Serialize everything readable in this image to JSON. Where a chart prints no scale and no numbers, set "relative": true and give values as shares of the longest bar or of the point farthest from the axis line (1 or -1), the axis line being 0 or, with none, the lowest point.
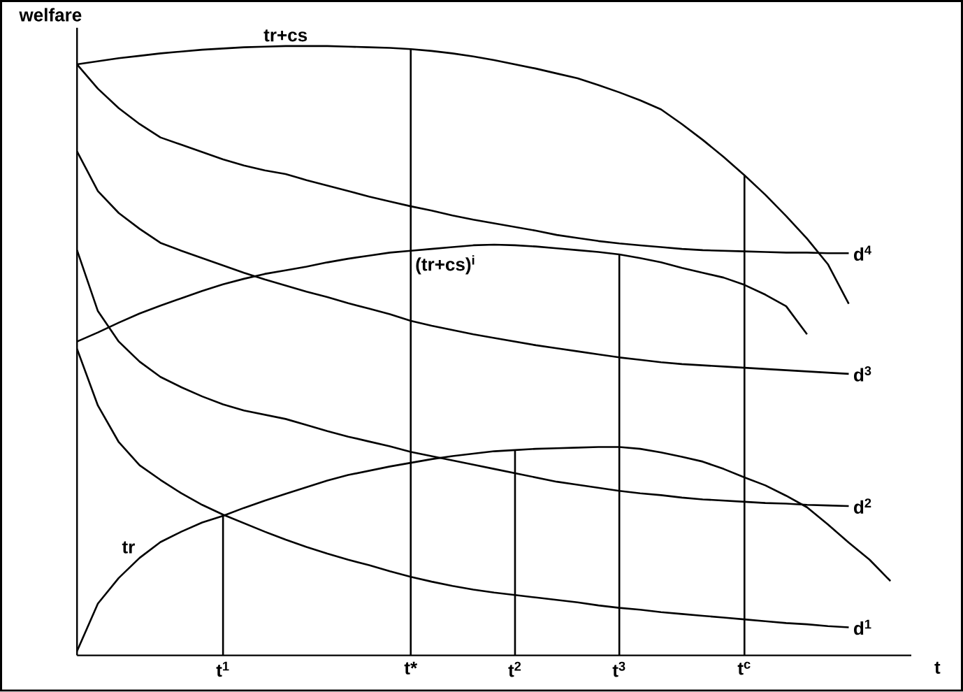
{
  "chart_data": {
    "type": "line",
    "relative": true,
    "xlabel": "t",
    "ylabel": "welfare",
    "marker": "none",
    "line_style": "solid",
    "categories": [
      null,
      null,
      null,
      null,
      null,
      null,
      null,
      "t$^{1}$",
      null,
      null,
      null,
      null,
      null,
      null,
      null,
      null,
      "t*",
      null,
      null,
      null,
      null,
      "t$^{2}$",
      null,
      null,
      null,
      null,
      "t$^{3}$",
      null,
      null,
      null,
      null,
      null,
      "t$^{c}$",
      null,
      null,
      null,
      null,
      null,
      null,
      null,
      null
    ],
    "series": [
      {
        "name": "tr+cs",
        "color": "#000000",
        "values": [
          0.97,
          0.975,
          0.98,
          0.984,
          0.988,
          0.991,
          0.994,
          0.996,
          0.998,
          0.999,
          1.0,
          1.0,
          1.0,
          0.999,
          0.998,
          0.997,
          0.995,
          0.992,
          0.988,
          0.983,
          0.977,
          0.97,
          0.963,
          0.955,
          0.947,
          0.936,
          0.924,
          0.911,
          0.896,
          0.872,
          0.846,
          0.818,
          0.788,
          0.756,
          0.721,
          0.684,
          0.642,
          0.577,
          null,
          null,
          null
        ]
      },
      {
        "name": "d$^{4}$",
        "color": "#000000",
        "values": [
          0.97,
          0.93,
          0.898,
          0.872,
          0.85,
          0.838,
          0.826,
          0.814,
          0.804,
          0.796,
          0.79,
          0.78,
          0.771,
          0.762,
          0.753,
          0.745,
          0.737,
          0.73,
          0.722,
          0.715,
          0.709,
          0.703,
          0.697,
          0.69,
          0.685,
          0.68,
          0.676,
          0.673,
          0.67,
          0.667,
          0.665,
          0.664,
          0.663,
          0.662,
          0.661,
          0.661,
          0.66,
          0.66,
          null,
          null,
          null
        ]
      },
      {
        "name": "(tr+cs)$^{i}$",
        "color": "#000000",
        "values": [
          0.515,
          0.53,
          0.546,
          0.561,
          0.574,
          0.586,
          0.598,
          0.609,
          0.618,
          0.626,
          0.632,
          0.638,
          0.645,
          0.651,
          0.656,
          0.661,
          0.664,
          0.667,
          0.67,
          0.673,
          0.674,
          0.673,
          0.671,
          0.668,
          0.665,
          0.662,
          0.658,
          0.652,
          0.645,
          0.636,
          0.628,
          0.62,
          0.608,
          0.592,
          0.573,
          0.527,
          null,
          null,
          null,
          null,
          null
        ]
      },
      {
        "name": "d$^{3}$",
        "color": "#000000",
        "values": [
          0.827,
          0.762,
          0.726,
          0.7,
          0.677,
          0.664,
          0.652,
          0.64,
          0.628,
          0.617,
          0.607,
          0.597,
          0.588,
          0.578,
          0.569,
          0.56,
          0.549,
          0.541,
          0.534,
          0.527,
          0.521,
          0.515,
          0.509,
          0.504,
          0.499,
          0.494,
          0.489,
          0.485,
          0.481,
          0.478,
          0.476,
          0.474,
          0.472,
          0.47,
          0.468,
          0.466,
          0.464,
          0.462,
          null,
          null,
          null
        ]
      },
      {
        "name": "d$^{2}$",
        "color": "#000000",
        "values": [
          0.665,
          0.565,
          0.515,
          0.482,
          0.457,
          0.44,
          0.425,
          0.412,
          0.402,
          0.395,
          0.388,
          0.378,
          0.368,
          0.359,
          0.351,
          0.343,
          0.334,
          0.327,
          0.32,
          0.313,
          0.306,
          0.299,
          0.292,
          0.285,
          0.28,
          0.275,
          0.27,
          0.266,
          0.263,
          0.259,
          0.256,
          0.254,
          0.252,
          0.25,
          0.249,
          0.247,
          0.246,
          0.245,
          null,
          null,
          null
        ]
      },
      {
        "name": "tr",
        "color": "#000000",
        "values": [
          0.007,
          0.085,
          0.127,
          0.16,
          0.186,
          0.203,
          0.218,
          0.229,
          0.242,
          0.254,
          0.265,
          0.276,
          0.287,
          0.296,
          0.303,
          0.31,
          0.316,
          0.322,
          0.327,
          0.331,
          0.335,
          0.337,
          0.339,
          0.34,
          0.341,
          0.342,
          0.342,
          0.339,
          0.333,
          0.326,
          0.318,
          0.306,
          0.292,
          0.279,
          0.262,
          0.243,
          0.215,
          0.185,
          0.157,
          0.122,
          null
        ]
      },
      {
        "name": "d$^{1}$",
        "color": "#000000",
        "values": [
          0.503,
          0.41,
          0.35,
          0.312,
          0.288,
          0.266,
          0.247,
          0.231,
          0.217,
          0.203,
          0.19,
          0.178,
          0.167,
          0.157,
          0.148,
          0.138,
          0.129,
          0.121,
          0.114,
          0.108,
          0.103,
          0.099,
          0.095,
          0.091,
          0.087,
          0.082,
          0.078,
          0.075,
          0.071,
          0.068,
          0.065,
          0.062,
          0.059,
          0.056,
          0.053,
          0.051,
          0.048,
          0.046,
          null,
          null,
          null
        ]
      },
      {
        "type": "bar",
        "color": "#000000",
        "values": [
          null,
          null,
          null,
          null,
          null,
          null,
          null,
          0.229,
          null,
          null,
          null,
          null,
          null,
          null,
          null,
          null,
          0.995,
          null,
          null,
          null,
          null,
          0.337,
          null,
          null,
          null,
          null,
          0.658,
          null,
          null,
          null,
          null,
          null,
          0.788,
          null,
          null,
          null,
          null,
          null,
          null,
          null,
          null
        ]
      }
    ]
  }
}
